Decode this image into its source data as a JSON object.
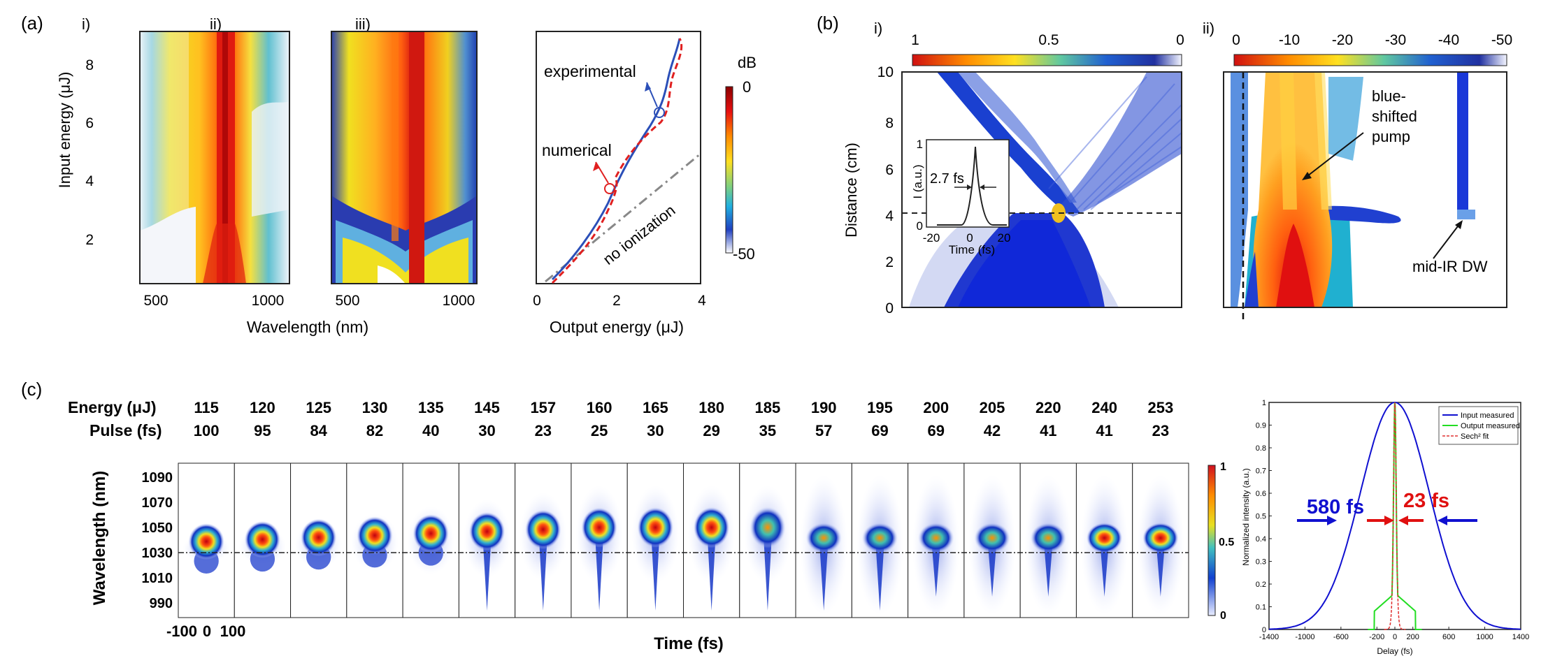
{
  "panel_a": {
    "label": "(a)",
    "sub_i": "i)",
    "sub_ii": "ii)",
    "sub_iii": "iii)",
    "ylabel": "Input energy (μJ)",
    "yticks": [
      "2",
      "4",
      "6",
      "8"
    ],
    "xticks_wl": [
      "500",
      "1000"
    ],
    "xlabel_wl": "Wavelength (nm)",
    "xticks_out": [
      "0",
      "2",
      "4"
    ],
    "xlabel_out": "Output energy (μJ)",
    "ann_experimental": "experimental",
    "ann_numerical": "numerical",
    "ann_noion": "no ionization",
    "cbar_title": "dB",
    "cbar_top": "0",
    "cbar_bottom": "-50"
  },
  "panel_b": {
    "label": "(b)",
    "sub_i": "i)",
    "sub_ii": "ii)",
    "ylabel": "Distance (cm)",
    "yticks": [
      "0",
      "2",
      "4",
      "6",
      "8",
      "10"
    ],
    "cbar_i_ticks": [
      "1",
      "0.5",
      "0"
    ],
    "cbar_ii_ticks": [
      "0",
      "-10",
      "-20",
      "-30",
      "-40",
      "-50"
    ],
    "inset_ylabel": "I (a.u.)",
    "inset_xlabel": "Time (fs)",
    "inset_xticks": [
      "-20",
      "0",
      "20"
    ],
    "inset_yticks": [
      "0",
      "1"
    ],
    "inset_fwhm": "2.7 fs",
    "ann_pump": [
      "blue-",
      "shifted",
      "pump"
    ],
    "ann_dw": "mid-IR DW"
  },
  "panel_c": {
    "label": "(c)",
    "row1_label": "Energy (μJ)",
    "row2_label": "Pulse (fs)",
    "energies": [
      "115",
      "120",
      "125",
      "130",
      "135",
      "145",
      "157",
      "160",
      "165",
      "180",
      "185",
      "190",
      "195",
      "200",
      "205",
      "220",
      "240",
      "253"
    ],
    "pulses": [
      "100",
      "95",
      "84",
      "82",
      "40",
      "30",
      "23",
      "25",
      "30",
      "29",
      "35",
      "57",
      "69",
      "69",
      "42",
      "41",
      "41",
      "23"
    ],
    "ylabel": "Wavelength (nm)",
    "yticks": [
      "1090",
      "1070",
      "1050",
      "1030",
      "1010",
      "990"
    ],
    "xticks": [
      "-100",
      "0",
      "100"
    ],
    "xlabel": "Time (fs)",
    "cbar_ticks": [
      "1",
      "0.5",
      "0"
    ]
  },
  "chart_data": {
    "type": "line",
    "ylabel": "Normalized intensity (a.u.)",
    "xlabel": "Delay (fs)",
    "xlim": [
      -1400,
      1400
    ],
    "ylim": [
      0,
      1
    ],
    "xticks": [
      "-1400",
      "-1000",
      "-600",
      "-200",
      "0",
      "200",
      "600",
      "1000",
      "1400"
    ],
    "yticks": [
      "0",
      "0.1",
      "0.2",
      "0.3",
      "0.4",
      "0.5",
      "0.6",
      "0.7",
      "0.8",
      "0.9",
      "1"
    ],
    "legend": [
      "Input measured",
      "Output measured",
      "Sech² fit"
    ],
    "legend_position": "top-right",
    "colors": {
      "input": "#1010d0",
      "output": "#22dd22",
      "fit": "#e03030"
    },
    "ann_input_width": "580 fs",
    "ann_output_width": "23 fs",
    "series": [
      {
        "name": "Input measured",
        "fwhm_fs": 580,
        "peak": 1
      },
      {
        "name": "Output measured",
        "fwhm_fs": 23,
        "peak": 1
      },
      {
        "name": "Sech² fit",
        "fwhm_fs": 23,
        "peak": 1
      }
    ]
  }
}
